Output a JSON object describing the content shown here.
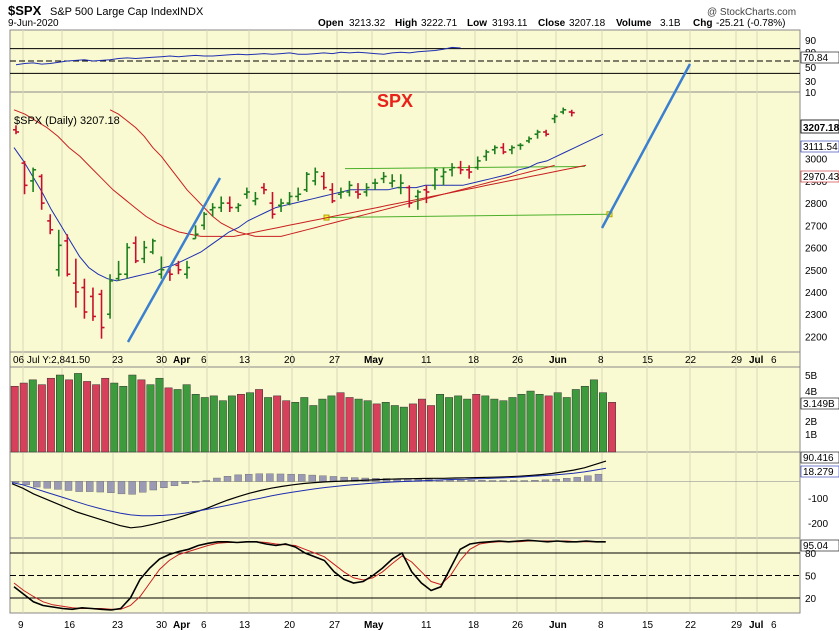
{
  "header": {
    "symbol": "$SPX",
    "name": "S&P 500 Large Cap Index",
    "exchange": "INDX",
    "date": "9-Jun-2020",
    "open_label": "Open",
    "open": "3213.32",
    "high_label": "High",
    "high": "3222.71",
    "low_label": "Low",
    "low": "3193.11",
    "close_label": "Close",
    "close": "3207.18",
    "volume_label": "Volume",
    "volume": "3.1B",
    "chg_label": "Chg",
    "chg": "-25.21 (-0.78%)",
    "watermark": "@ StockCharts.com"
  },
  "annotation": {
    "text": "SPX",
    "color": "#e8221a"
  },
  "colors": {
    "panel_bg": "#fafad2",
    "up": "#1f7f1f",
    "down": "#c8102e",
    "ma_fast": "#1f2fb0",
    "ma_slow": "#c82020",
    "trendline": "#3a7fd0",
    "channel": "#4caf2a"
  },
  "chart_data": [
    {
      "name": "rsi_top",
      "type": "line",
      "axis_ticks": [
        "90",
        "80",
        "70.84",
        "50",
        "30",
        "10"
      ],
      "current_value": 70.84,
      "ylim": [
        0,
        100
      ],
      "guide_levels": [
        70,
        50,
        30
      ],
      "values": [
        44,
        46,
        47,
        45,
        46,
        48,
        50,
        51,
        52,
        50,
        51,
        52,
        54,
        55,
        54,
        55,
        56,
        57,
        58,
        57,
        58,
        59,
        58,
        58,
        59,
        60,
        61,
        60,
        61,
        62,
        61,
        62,
        63,
        61,
        61,
        62,
        63,
        62,
        64,
        63,
        64,
        63,
        62,
        61,
        63,
        64,
        63,
        65,
        66,
        67,
        69,
        72,
        71
      ]
    },
    {
      "name": "price",
      "type": "candlestick",
      "label": "$SPX (Daily) 3207.18",
      "ylim": [
        2130,
        3300
      ],
      "axis_ticks": [
        2200,
        2300,
        2400,
        2500,
        2600,
        2700,
        2800,
        2900,
        3000
      ],
      "right_labels": [
        "3207.18",
        "3111.54",
        "2970.43"
      ],
      "x_tick_labels": [
        "23",
        "30",
        "Apr",
        "6",
        "13",
        "20",
        "27",
        "May",
        "11",
        "18",
        "26",
        "Jun",
        "8",
        "15",
        "22",
        "29",
        "Jul",
        "6"
      ],
      "bar_ohlc": [
        [
          3130,
          3150,
          3110,
          3120
        ],
        [
          2980,
          2990,
          2840,
          2880
        ],
        [
          2900,
          2960,
          2850,
          2950
        ],
        [
          2920,
          2930,
          2770,
          2800
        ],
        [
          2720,
          2750,
          2660,
          2680
        ],
        [
          2500,
          2680,
          2470,
          2610
        ],
        [
          2630,
          2660,
          2470,
          2480
        ],
        [
          2440,
          2550,
          2330,
          2400
        ],
        [
          2420,
          2460,
          2280,
          2310
        ],
        [
          2380,
          2420,
          2270,
          2290
        ],
        [
          2390,
          2410,
          2190,
          2240
        ],
        [
          2300,
          2480,
          2280,
          2450
        ],
        [
          2460,
          2540,
          2450,
          2480
        ],
        [
          2480,
          2620,
          2460,
          2600
        ],
        [
          2620,
          2650,
          2530,
          2540
        ],
        [
          2550,
          2630,
          2530,
          2600
        ],
        [
          2580,
          2640,
          2570,
          2630
        ],
        [
          2480,
          2560,
          2460,
          2500
        ],
        [
          2490,
          2520,
          2450,
          2480
        ],
        [
          2520,
          2540,
          2480,
          2500
        ],
        [
          2480,
          2540,
          2460,
          2510
        ],
        [
          2640,
          2700,
          2640,
          2660
        ],
        [
          2700,
          2760,
          2680,
          2750
        ],
        [
          2770,
          2800,
          2740,
          2780
        ],
        [
          2780,
          2830,
          2760,
          2800
        ],
        [
          2800,
          2830,
          2760,
          2780
        ],
        [
          2780,
          2800,
          2760,
          2790
        ],
        [
          2840,
          2870,
          2820,
          2850
        ],
        [
          2810,
          2850,
          2790,
          2820
        ],
        [
          2870,
          2890,
          2840,
          2860
        ],
        [
          2800,
          2850,
          2730,
          2750
        ],
        [
          2790,
          2820,
          2760,
          2800
        ],
        [
          2800,
          2850,
          2790,
          2830
        ],
        [
          2830,
          2870,
          2810,
          2840
        ],
        [
          2860,
          2940,
          2850,
          2930
        ],
        [
          2900,
          2960,
          2880,
          2940
        ],
        [
          2920,
          2940,
          2860,
          2870
        ],
        [
          2860,
          2890,
          2800,
          2810
        ],
        [
          2840,
          2870,
          2820,
          2850
        ],
        [
          2850,
          2900,
          2830,
          2880
        ],
        [
          2850,
          2890,
          2820,
          2840
        ],
        [
          2850,
          2890,
          2830,
          2870
        ],
        [
          2890,
          2910,
          2860,
          2890
        ],
        [
          2910,
          2940,
          2890,
          2920
        ],
        [
          2890,
          2930,
          2870,
          2900
        ],
        [
          2870,
          2930,
          2840,
          2890
        ],
        [
          2870,
          2880,
          2780,
          2800
        ],
        [
          2830,
          2860,
          2770,
          2850
        ],
        [
          2860,
          2880,
          2800,
          2850
        ],
        [
          2880,
          2960,
          2860,
          2950
        ],
        [
          2920,
          2960,
          2880,
          2940
        ],
        [
          2950,
          2980,
          2920,
          2960
        ],
        [
          2960,
          2990,
          2930,
          2950
        ],
        [
          2950,
          2970,
          2910,
          2940
        ],
        [
          2960,
          3010,
          2950,
          2990
        ],
        [
          3010,
          3040,
          2990,
          3030
        ],
        [
          3040,
          3060,
          3020,
          3050
        ],
        [
          3050,
          3070,
          3020,
          3030
        ],
        [
          3040,
          3060,
          3020,
          3050
        ],
        [
          3060,
          3070,
          3040,
          3060
        ],
        [
          3080,
          3100,
          3070,
          3090
        ],
        [
          3110,
          3130,
          3090,
          3120
        ],
        [
          3120,
          3130,
          3100,
          3110
        ],
        [
          3180,
          3200,
          3160,
          3190
        ],
        [
          3210,
          3230,
          3200,
          3220
        ],
        [
          3210,
          3220,
          3190,
          3207
        ]
      ],
      "ma_fast": [
        3050,
        2990,
        2920,
        2850,
        2770,
        2700,
        2630,
        2560,
        2510,
        2480,
        2460,
        2450,
        2460,
        2470,
        2480,
        2490,
        2510,
        2520,
        2540,
        2560,
        2580,
        2610,
        2640,
        2670,
        2690,
        2720,
        2740,
        2760,
        2780,
        2790,
        2800,
        2810,
        2820,
        2830,
        2840,
        2850,
        2860,
        2860,
        2860,
        2860,
        2860,
        2870,
        2870,
        2870,
        2880,
        2880,
        2880,
        2880,
        2880,
        2890,
        2900,
        2910,
        2920,
        2930,
        2950,
        2960,
        2980,
        2990,
        3010,
        3030,
        3050,
        3070,
        3090,
        3110
      ],
      "ma_slow": [
        3220,
        3200,
        3170,
        3140,
        3100,
        3050,
        3010,
        2960,
        2910,
        2860,
        2820,
        2780,
        2740,
        2710,
        2690,
        2670,
        2660,
        2650,
        2650,
        2650,
        2650,
        2660,
        2670,
        2680,
        2690,
        2700,
        2710,
        2720,
        2730,
        2740,
        2750,
        2760,
        2770,
        2780,
        2790,
        2800,
        2810,
        2820,
        2830,
        2840,
        2850,
        2860,
        2870,
        2880,
        2890,
        2900,
        2910,
        2920,
        2930,
        2940,
        2950,
        2960,
        2970
      ]
    },
    {
      "name": "volume",
      "type": "bar",
      "label": "06 Jul Y:2,841.50",
      "axis_ticks": [
        "5B",
        "4B",
        "3.149B",
        "2B",
        "1B"
      ],
      "ylim": [
        0,
        5.3
      ],
      "values": [
        4.1,
        4.3,
        4.5,
        4.2,
        4.6,
        4.8,
        4.5,
        4.9,
        4.4,
        4.2,
        4.6,
        4.3,
        4.1,
        4.8,
        4.5,
        4.2,
        4.6,
        4.0,
        3.9,
        4.2,
        3.6,
        3.4,
        3.5,
        3.2,
        3.5,
        3.6,
        3.7,
        3.9,
        3.4,
        3.5,
        3.2,
        3.1,
        3.4,
        2.9,
        3.3,
        3.5,
        3.7,
        3.4,
        3.3,
        3.2,
        3.0,
        3.1,
        2.9,
        2.8,
        3.0,
        3.3,
        2.9,
        3.6,
        3.4,
        3.5,
        3.3,
        3.6,
        3.5,
        3.3,
        3.2,
        3.4,
        3.6,
        3.8,
        3.6,
        3.5,
        3.7,
        3.4,
        3.9,
        4.1,
        4.5,
        3.7,
        3.1
      ],
      "up_flags": [
        0,
        0,
        1,
        0,
        0,
        1,
        0,
        1,
        0,
        0,
        0,
        1,
        1,
        1,
        0,
        1,
        1,
        0,
        1,
        1,
        1,
        1,
        1,
        1,
        1,
        0,
        1,
        0,
        1,
        0,
        0,
        1,
        1,
        1,
        1,
        1,
        0,
        0,
        1,
        1,
        0,
        1,
        1,
        1,
        0,
        0,
        0,
        1,
        1,
        1,
        1,
        0,
        1,
        1,
        1,
        1,
        1,
        1,
        1,
        0,
        1,
        1,
        1,
        1,
        1,
        1,
        0
      ]
    },
    {
      "name": "macd",
      "type": "line",
      "axis_ticks": [
        "90.416",
        "18.279",
        "-100",
        "-200"
      ],
      "ylim": [
        -250,
        130
      ],
      "macd": [
        -10,
        -30,
        -55,
        -75,
        -95,
        -115,
        -135,
        -150,
        -165,
        -180,
        -195,
        -205,
        -200,
        -190,
        -178,
        -165,
        -150,
        -135,
        -120,
        -100,
        -82,
        -66,
        -52,
        -40,
        -30,
        -22,
        -15,
        -9,
        -5,
        -2,
        0,
        2,
        4,
        6,
        8,
        10,
        11,
        12,
        13,
        14,
        14,
        15,
        16,
        17,
        18,
        19,
        21,
        23,
        26,
        30,
        35,
        42,
        50,
        60,
        75,
        90
      ],
      "signal": [
        -5,
        -15,
        -30,
        -45,
        -60,
        -75,
        -90,
        -105,
        -118,
        -130,
        -140,
        -148,
        -152,
        -152,
        -150,
        -146,
        -140,
        -132,
        -124,
        -115,
        -105,
        -95,
        -84,
        -74,
        -64,
        -55,
        -47,
        -40,
        -33,
        -27,
        -22,
        -17,
        -13,
        -9,
        -6,
        -3,
        -1,
        1,
        3,
        5,
        7,
        9,
        10,
        12,
        13,
        15,
        17,
        19,
        22,
        25,
        28,
        32,
        36,
        42,
        50,
        58
      ],
      "histogram": [
        -5,
        -15,
        -25,
        -30,
        -35,
        -40,
        -45,
        -45,
        -47,
        -50,
        -55,
        -57,
        -48,
        -38,
        -28,
        -19,
        -10,
        -3,
        4,
        15,
        23,
        29,
        32,
        34,
        34,
        33,
        32,
        31,
        28,
        25,
        22,
        19,
        17,
        15,
        14,
        13,
        12,
        11,
        10,
        9,
        7,
        6,
        6,
        5,
        5,
        4,
        4,
        4,
        4,
        5,
        7,
        10,
        14,
        18,
        25,
        32
      ]
    },
    {
      "name": "stochastic",
      "type": "line",
      "axis_ticks": [
        "95.04",
        "80",
        "50",
        "20"
      ],
      "ylim": [
        0,
        100
      ],
      "guide_levels": [
        80,
        50,
        20
      ],
      "x_tick_labels": [
        "9",
        "16",
        "23",
        "30",
        "Apr",
        "6",
        "13",
        "20",
        "27",
        "May",
        "11",
        "18",
        "26",
        "Jun",
        "8",
        "15",
        "22",
        "29",
        "Jul",
        "6"
      ],
      "k": [
        35,
        25,
        15,
        10,
        8,
        6,
        5,
        7,
        6,
        5,
        4,
        6,
        20,
        45,
        60,
        72,
        78,
        82,
        85,
        90,
        93,
        95,
        95,
        94,
        95,
        95,
        92,
        90,
        92,
        88,
        80,
        75,
        70,
        55,
        45,
        40,
        42,
        50,
        60,
        72,
        80,
        55,
        40,
        30,
        35,
        60,
        85,
        92,
        94,
        95,
        96,
        95,
        96,
        97,
        96,
        95,
        96,
        95,
        95,
        96,
        95,
        95
      ],
      "d": [
        40,
        30,
        22,
        15,
        11,
        9,
        7,
        6,
        6,
        6,
        5,
        5,
        10,
        22,
        40,
        58,
        70,
        78,
        82,
        86,
        90,
        93,
        94,
        94,
        95,
        95,
        94,
        92,
        91,
        90,
        85,
        80,
        75,
        65,
        55,
        47,
        44,
        47,
        55,
        66,
        76,
        68,
        55,
        42,
        38,
        50,
        70,
        85,
        92,
        94,
        95,
        95,
        95,
        96,
        96,
        96,
        96,
        96,
        95,
        95,
        95,
        95
      ]
    }
  ]
}
